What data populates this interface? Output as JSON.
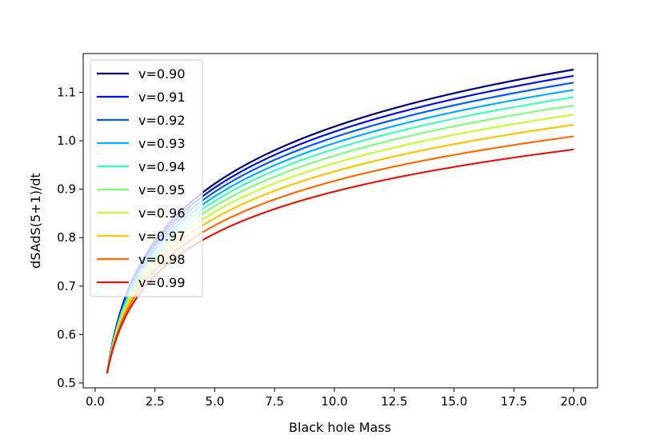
{
  "chart_data": {
    "type": "line",
    "title": "",
    "xlabel": "Black hole Mass",
    "ylabel": "dSAdS(5+1)/dt",
    "xlim": [
      -0.5,
      21.0
    ],
    "ylim": [
      0.49,
      1.18
    ],
    "xticks": [
      0.0,
      2.5,
      5.0,
      7.5,
      10.0,
      12.5,
      15.0,
      17.5,
      20.0
    ],
    "xtick_labels": [
      "0.0",
      "2.5",
      "5.0",
      "7.5",
      "10.0",
      "12.5",
      "15.0",
      "17.5",
      "20.0"
    ],
    "yticks": [
      0.5,
      0.6,
      0.7,
      0.8,
      0.9,
      1.0,
      1.1
    ],
    "ytick_labels": [
      "0.5",
      "0.6",
      "0.7",
      "0.8",
      "0.9",
      "1.0",
      "1.1"
    ],
    "legend_position": "upper-left",
    "x_range": [
      0.5,
      20.0
    ],
    "series": [
      {
        "name": "v=0.90",
        "color": "#00007f",
        "y_start": 0.52,
        "y_end": 1.147
      },
      {
        "name": "v=0.91",
        "color": "#0010e8",
        "y_start": 0.52,
        "y_end": 1.134
      },
      {
        "name": "v=0.92",
        "color": "#005cff",
        "y_start": 0.52,
        "y_end": 1.12
      },
      {
        "name": "v=0.93",
        "color": "#00b0ff",
        "y_start": 0.52,
        "y_end": 1.105
      },
      {
        "name": "v=0.94",
        "color": "#3bffba",
        "y_start": 0.52,
        "y_end": 1.09
      },
      {
        "name": "v=0.95",
        "color": "#7dff7a",
        "y_start": 0.52,
        "y_end": 1.073
      },
      {
        "name": "v=0.96",
        "color": "#c4ff33",
        "y_start": 0.52,
        "y_end": 1.054
      },
      {
        "name": "v=0.97",
        "color": "#ffc400",
        "y_start": 0.52,
        "y_end": 1.033
      },
      {
        "name": "v=0.98",
        "color": "#ff6a00",
        "y_start": 0.52,
        "y_end": 1.009
      },
      {
        "name": "v=0.99",
        "color": "#e8160a",
        "y_start": 0.52,
        "y_end": 0.982
      }
    ]
  }
}
